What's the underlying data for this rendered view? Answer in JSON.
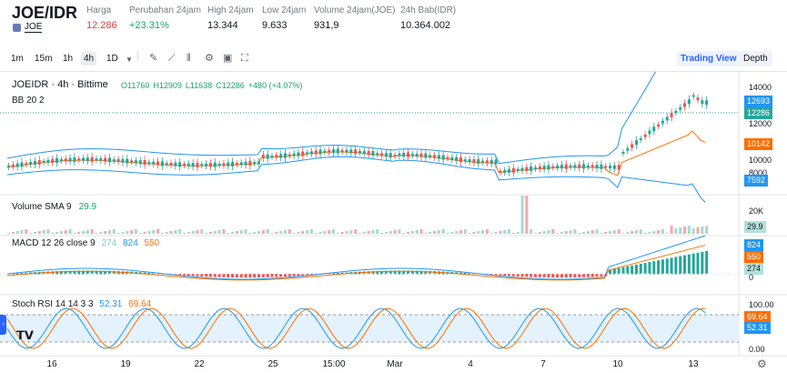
{
  "header": {
    "pair": "JOE/IDR",
    "coin_link": "JOE",
    "stats": [
      {
        "label": "Harga",
        "value": "12.286",
        "tone": "red"
      },
      {
        "label": "Perubahan 24jam",
        "value": "+23.31%",
        "tone": "green"
      },
      {
        "label": "High 24jam",
        "value": "13.344",
        "tone": ""
      },
      {
        "label": "Low 24jam",
        "value": "9.633",
        "tone": ""
      },
      {
        "label": "Volume 24jam(JOE)",
        "value": "931,9",
        "tone": ""
      },
      {
        "label": "24h Bab(IDR)",
        "value": "10.364.002",
        "tone": ""
      }
    ]
  },
  "toolbar": {
    "timeframes": [
      "1m",
      "15m",
      "1h",
      "4h",
      "1D"
    ],
    "active_timeframe": "4h",
    "tools": [
      "chevron-down-icon",
      "pencil-icon",
      "indicator-icon",
      "candles-icon",
      "gear-icon",
      "save-icon",
      "fullscreen-icon"
    ],
    "trading_view_label": "Trading View",
    "depth_label": "Depth"
  },
  "chart": {
    "symbol_line": "JOEIDR · 4h · Bittime",
    "ohlc": {
      "o": "O11760",
      "h": "H12909",
      "l": "L11638",
      "c": "C12286",
      "chg": "+480 (+4.07%)"
    },
    "bb_label": "BB 20 2",
    "price_axis": [
      "14000",
      "12000",
      "10000",
      "8000"
    ],
    "price_tags": {
      "upper": "12693",
      "last": "12286",
      "basis": "10142",
      "lower": "7592"
    },
    "volume_label": "Volume SMA 9",
    "volume_value": "29.9",
    "volume_axis": "20K",
    "volume_tag": "29.9",
    "macd_label": "MACD 12 26 close 9",
    "macd_values": [
      "274",
      "824",
      "550"
    ],
    "macd_axis_zero": "0",
    "macd_tags": {
      "macd": "824",
      "signal": "550",
      "hist": "274"
    },
    "stoch_label": "Stoch RSI 14 14 3 3",
    "stoch_values": [
      "52.31",
      "69.64"
    ],
    "stoch_axis": [
      "100.00",
      "0.00"
    ],
    "stoch_tags": {
      "d": "69.64",
      "k": "52.31"
    },
    "x_labels": [
      "16",
      "19",
      "22",
      "25",
      "15:00",
      "Mar",
      "4",
      "7",
      "10",
      "13"
    ]
  },
  "colors": {
    "up": "#26a69a",
    "down": "#ef5350",
    "bb": "#2196f3",
    "basis": "#ff6d00",
    "macd": "#2196f3",
    "signal": "#ff6d00"
  }
}
